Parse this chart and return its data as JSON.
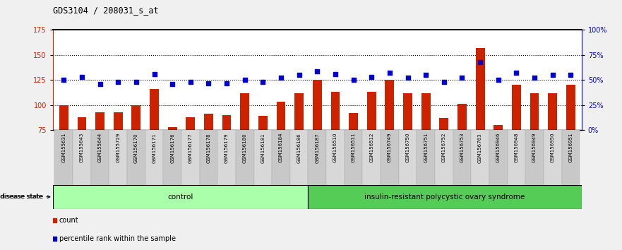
{
  "title": "GDS3104 / 208031_s_at",
  "samples": [
    "GSM155631",
    "GSM155643",
    "GSM155644",
    "GSM155729",
    "GSM156170",
    "GSM156171",
    "GSM156176",
    "GSM156177",
    "GSM156178",
    "GSM156179",
    "GSM156180",
    "GSM156181",
    "GSM156184",
    "GSM156186",
    "GSM156187",
    "GSM156510",
    "GSM156511",
    "GSM156512",
    "GSM156749",
    "GSM156750",
    "GSM156751",
    "GSM156752",
    "GSM156753",
    "GSM156763",
    "GSM156946",
    "GSM156948",
    "GSM156949",
    "GSM156950",
    "GSM156951"
  ],
  "counts": [
    100,
    88,
    93,
    93,
    100,
    116,
    78,
    88,
    91,
    90,
    112,
    89,
    103,
    112,
    125,
    113,
    92,
    113,
    125,
    112,
    112,
    87,
    101,
    157,
    80,
    120,
    112,
    112,
    120
  ],
  "percentile_ranks": [
    50,
    53,
    46,
    48,
    48,
    56,
    46,
    48,
    47,
    47,
    50,
    48,
    52,
    55,
    59,
    56,
    50,
    53,
    57,
    52,
    55,
    48,
    52,
    68,
    50,
    57,
    52,
    55,
    55
  ],
  "bar_color": "#cc2200",
  "dot_color": "#0000cc",
  "control_count": 14,
  "disease_label": "control",
  "disease_label2": "insulin-resistant polycystic ovary syndrome",
  "ylim_left": [
    75,
    175
  ],
  "ylim_right": [
    0,
    100
  ],
  "yticks_left": [
    75,
    100,
    125,
    150,
    175
  ],
  "yticks_right": [
    0,
    25,
    50,
    75,
    100
  ],
  "ytick_labels_left": [
    "75",
    "100",
    "125",
    "150",
    "175"
  ],
  "ytick_labels_right": [
    "0%",
    "25%",
    "50%",
    "75%",
    "100%"
  ],
  "plot_bg": "#ffffff",
  "xticklabel_bg": "#cccccc",
  "control_bg": "#aaffaa",
  "disease_bg": "#55cc55",
  "legend_items": [
    "count",
    "percentile rank within the sample"
  ]
}
